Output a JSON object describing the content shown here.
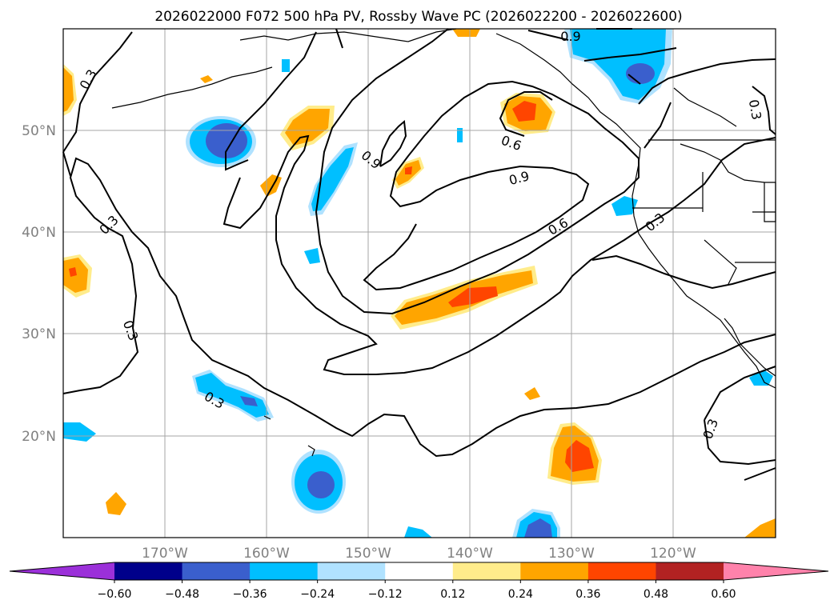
{
  "title": "2026022000 F072 500 hPa PV, Rossby Wave PC (2026022200 - 2026022600)",
  "map": {
    "lon_labels": [
      "170°W",
      "160°W",
      "150°W",
      "140°W",
      "130°W",
      "120°W"
    ],
    "lat_labels": [
      "50°N",
      "40°N",
      "30°N",
      "20°N"
    ],
    "contour_labels": [
      "0.3",
      "0.3",
      "0.3",
      "0.3",
      "0.3",
      "0.3",
      "0.3",
      "0.6",
      "0.6",
      "0.9",
      "0.9",
      "0.9"
    ]
  },
  "colorbar": {
    "ticks": [
      "−0.60",
      "−0.48",
      "−0.36",
      "−0.24",
      "−0.12",
      "0.12",
      "0.24",
      "0.36",
      "0.48",
      "0.60"
    ],
    "colors": [
      "#9b30d9",
      "#00008b",
      "#3a5fcd",
      "#00bfff",
      "#b0e2ff",
      "#ffffff",
      "#ffec8b",
      "#ffa500",
      "#ff4500",
      "#b22222",
      "#ff82ab"
    ]
  }
}
